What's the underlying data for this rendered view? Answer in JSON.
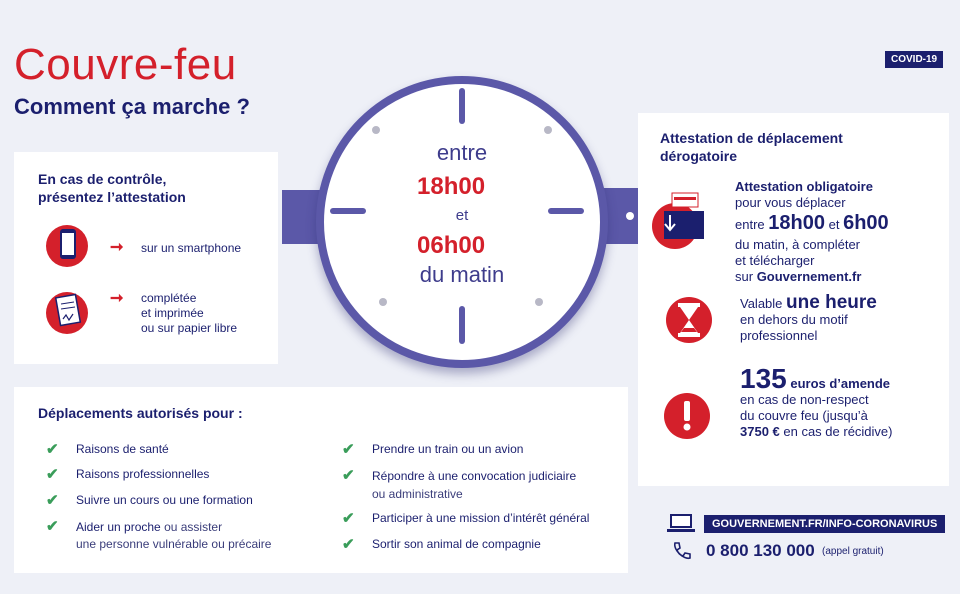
{
  "header": {
    "title": "Couvre-feu",
    "subtitle": "Comment ça marche ?",
    "badge": "COVID-19"
  },
  "clock": {
    "line1": "entre",
    "time1": "18h00",
    "line2": "et",
    "time2": "06h00",
    "line3": "du matin"
  },
  "control": {
    "heading_l1": "En cas de contrôle,",
    "heading_l2": "présentez l’attestation",
    "options": [
      {
        "icon": "smartphone-icon",
        "text_l1": "sur un smartphone"
      },
      {
        "icon": "document-icon",
        "text_l1": "complétée",
        "text_l2": "et imprimée",
        "text_l3": "ou sur papier libre"
      }
    ]
  },
  "authorized": {
    "heading": "Déplacements autorisés pour :",
    "left": [
      {
        "bold": "Raisons de santé",
        "rest": "",
        "l2": ""
      },
      {
        "bold": "Raisons professionnelles",
        "rest": "",
        "l2": ""
      },
      {
        "bold": "Suivre un cours ou une formation",
        "rest": "",
        "l2": ""
      },
      {
        "bold": "Aider un proche",
        "rest": " ou assister",
        "l2": "une personne vulnérable ou précaire"
      }
    ],
    "right": [
      {
        "bold": "Prendre un train ou un avion",
        "l2": ""
      },
      {
        "bold": "Répondre à une convocation judiciaire",
        "l2": "ou administrative"
      },
      {
        "bold": "Participer à une mission d’intérêt général",
        "l2": ""
      },
      {
        "bold": "Sortir son animal de compagnie",
        "l2": ""
      }
    ]
  },
  "attestation": {
    "heading_l1": "Attestation de déplacement",
    "heading_l2": "dérogatoire",
    "block1": {
      "title": "Attestation obligatoire",
      "l2": "pour vous déplacer",
      "entre": "entre",
      "t1": "18h00",
      "et": "et",
      "t2": "6h00",
      "l4": "du matin, à compléter",
      "l5": "et télécharger",
      "l6_pre": "sur",
      "l6_bold": "Gouvernement.fr"
    },
    "block2": {
      "pre": "Valable",
      "big": "une heure",
      "l2": "en dehors du motif",
      "l3": "professionnel"
    },
    "block3": {
      "big": "135",
      "unit": "euros d’amende",
      "l2": "en cas de non-respect",
      "l3": "du couvre feu (jusqu’à",
      "l4_bold": "3750 €",
      "l4_rest": " en cas de récidive)"
    }
  },
  "footer": {
    "website": "GOUVERNEMENT.FR/INFO-CORONAVIRUS",
    "phone": "0 800 130 000",
    "phone_note": "(appel gratuit)"
  },
  "colors": {
    "navy": "#1b1f6e",
    "red": "#d4202b",
    "purple": "#5b58a8",
    "green": "#3a9d5a"
  }
}
